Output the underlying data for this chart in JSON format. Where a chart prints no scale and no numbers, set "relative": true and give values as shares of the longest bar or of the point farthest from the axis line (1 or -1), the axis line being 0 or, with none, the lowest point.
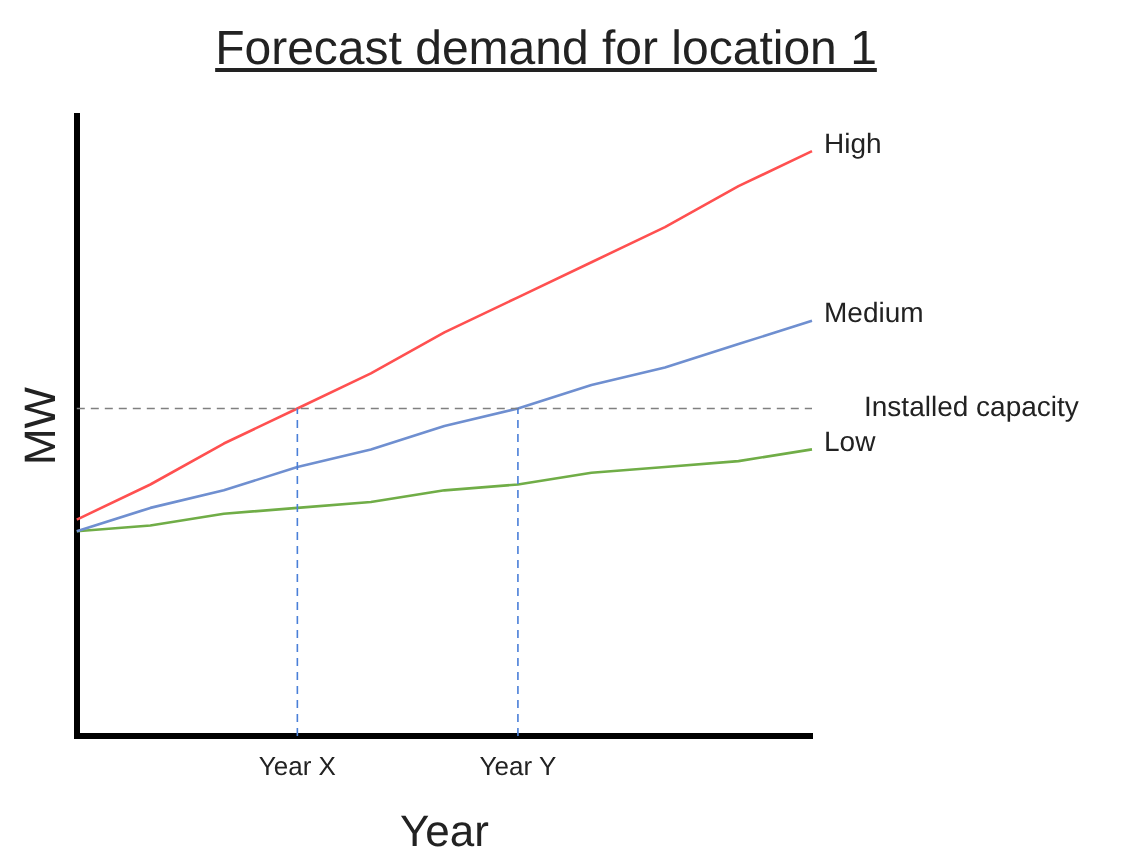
{
  "chart_data": {
    "type": "line",
    "title": "Forecast demand for location 1",
    "xlabel": "Year",
    "ylabel": "MW",
    "relative": true,
    "grid": false,
    "legend": false,
    "marker": "none",
    "line_style": "solid",
    "categories": [
      null,
      null,
      null,
      "Year X",
      null,
      null,
      "Year Y",
      null,
      null,
      null,
      null
    ],
    "series": [
      {
        "name": "High",
        "color": "#ff5050",
        "values": [
          0.37,
          0.43,
          0.5,
          0.56,
          0.62,
          0.69,
          0.75,
          0.81,
          0.87,
          0.94,
          1.0
        ]
      },
      {
        "name": "Medium",
        "color": "#6f8fd0",
        "values": [
          0.35,
          0.39,
          0.42,
          0.46,
          0.49,
          0.53,
          0.56,
          0.6,
          0.63,
          0.67,
          0.71
        ]
      },
      {
        "name": "Low",
        "color": "#70ad47",
        "values": [
          0.35,
          0.36,
          0.38,
          0.39,
          0.4,
          0.42,
          0.43,
          0.45,
          0.46,
          0.47,
          0.49
        ]
      }
    ],
    "ref_lines": [
      {
        "axis": "y",
        "value": 0.56,
        "label": "Installed capacity",
        "color": "#808080",
        "line_style": "dashed"
      },
      {
        "axis": "x",
        "value": "Year X",
        "label": null,
        "color": "#4a7fd8",
        "line_style": "dashed"
      },
      {
        "axis": "x",
        "value": "Year Y",
        "label": null,
        "color": "#4a7fd8",
        "line_style": "dashed"
      }
    ]
  }
}
